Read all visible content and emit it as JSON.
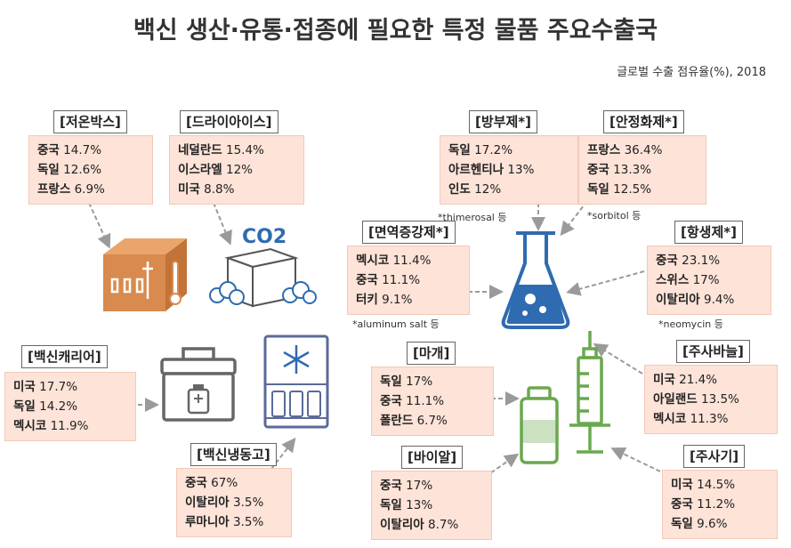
{
  "title": "백신 생산·유통·접종에 필요한 특정 물품 주요수출국",
  "subtitle": "글로벌 수출 점유율(%), 2018",
  "co2_text": "CO2",
  "items": [
    {
      "name": "[저온박스]",
      "rows": [
        {
          "c": "중국",
          "v": "14.7%"
        },
        {
          "c": "독일",
          "v": "12.6%"
        },
        {
          "c": "프랑스",
          "v": "6.9%"
        }
      ]
    },
    {
      "name": "[드라이아이스]",
      "rows": [
        {
          "c": "네덜란드",
          "v": "15.4%"
        },
        {
          "c": "이스라엘",
          "v": "12%"
        },
        {
          "c": "미국",
          "v": "8.8%"
        }
      ]
    },
    {
      "name": "[방부제*]",
      "rows": [
        {
          "c": "독일",
          "v": "17.2%"
        },
        {
          "c": "아르헨티나",
          "v": "13%"
        },
        {
          "c": "인도",
          "v": "12%"
        }
      ],
      "note": "*thimerosal 등"
    },
    {
      "name": "[안정화제*]",
      "rows": [
        {
          "c": "프랑스",
          "v": "36.4%"
        },
        {
          "c": "중국",
          "v": "13.3%"
        },
        {
          "c": "독일",
          "v": "12.5%"
        }
      ],
      "note": "*sorbitol 등"
    },
    {
      "name": "[면역증강제*]",
      "rows": [
        {
          "c": "멕시코",
          "v": "11.4%"
        },
        {
          "c": "중국",
          "v": "11.1%"
        },
        {
          "c": "터키",
          "v": "9.1%"
        }
      ],
      "note": "*aluminum salt 등"
    },
    {
      "name": "[항생제*]",
      "rows": [
        {
          "c": "중국",
          "v": "23.1%"
        },
        {
          "c": "스위스",
          "v": "17%"
        },
        {
          "c": "이탈리아",
          "v": "9.4%"
        }
      ],
      "note": "*neomycin 등"
    },
    {
      "name": "[백신캐리어]",
      "rows": [
        {
          "c": "미국",
          "v": "17.7%"
        },
        {
          "c": "독일",
          "v": "14.2%"
        },
        {
          "c": "멕시코",
          "v": "11.9%"
        }
      ]
    },
    {
      "name": "[마개]",
      "rows": [
        {
          "c": "독일",
          "v": "17%"
        },
        {
          "c": "중국",
          "v": "11.1%"
        },
        {
          "c": "폴란드",
          "v": "6.7%"
        }
      ]
    },
    {
      "name": "[주사바늘]",
      "rows": [
        {
          "c": "미국",
          "v": "21.4%"
        },
        {
          "c": "아일랜드",
          "v": "13.5%"
        },
        {
          "c": "멕시코",
          "v": "11.3%"
        }
      ]
    },
    {
      "name": "[백신냉동고]",
      "rows": [
        {
          "c": "중국",
          "v": "67%"
        },
        {
          "c": "이탈리아",
          "v": "3.5%"
        },
        {
          "c": "루마니아",
          "v": "3.5%"
        }
      ]
    },
    {
      "name": "[바이알]",
      "rows": [
        {
          "c": "중국",
          "v": "17%"
        },
        {
          "c": "독일",
          "v": "13%"
        },
        {
          "c": "이탈리아",
          "v": "8.7%"
        }
      ]
    },
    {
      "name": "[주사기]",
      "rows": [
        {
          "c": "미국",
          "v": "14.5%"
        },
        {
          "c": "중국",
          "v": "11.2%"
        },
        {
          "c": "독일",
          "v": "9.6%"
        }
      ]
    }
  ],
  "colors": {
    "box_fill": "#fde3d8",
    "icon_orange": "#d98a4e",
    "icon_blue": "#2f6bb0",
    "icon_green": "#6aa84f",
    "icon_gray": "#666666"
  }
}
